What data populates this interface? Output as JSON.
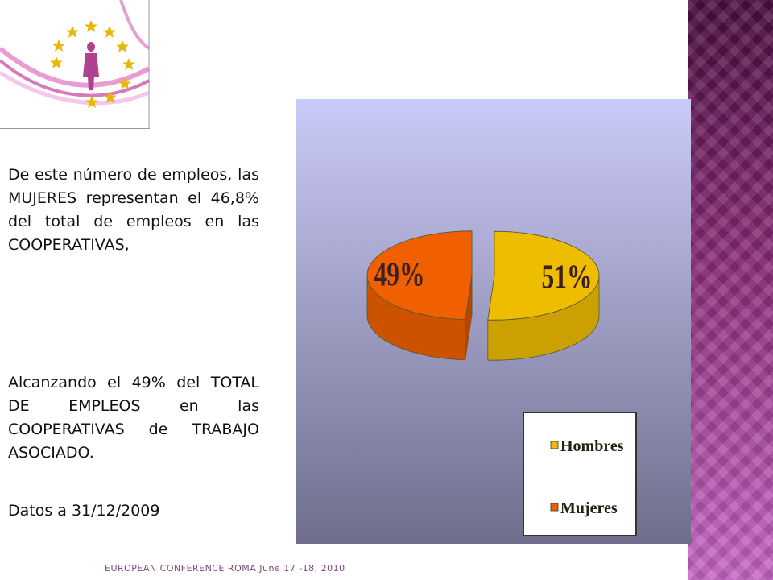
{
  "slide": {
    "paragraphs": [
      "De este número de empleos, las MUJERES representan el 46,8% del total de empleos en las COOPERATIVAS,",
      "Alcanzando el 49% del TOTAL DE EMPLEOS en las COOPERATIVAS de TRABAJO ASOCIADO.",
      "Datos a 31/12/2009"
    ],
    "footer": "EUROPEAN CONFERENCE ROMA June 17 -18, 2010"
  },
  "chart_data": {
    "type": "pie",
    "categories": [
      "Hombres",
      "Mujeres"
    ],
    "values": [
      51,
      49
    ],
    "value_labels": [
      "51%",
      "49%"
    ],
    "colors": [
      "#eebd00",
      "#f06000"
    ],
    "legend": "lower right"
  }
}
